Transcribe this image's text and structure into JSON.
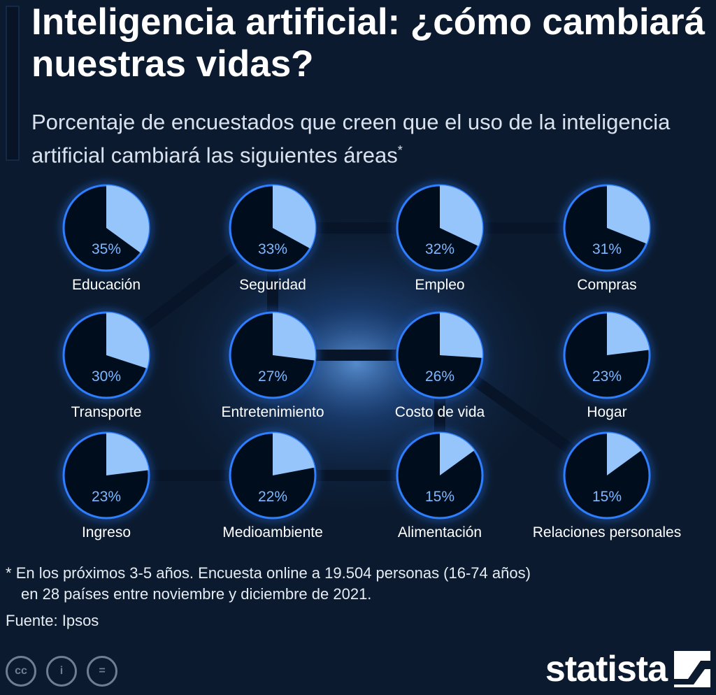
{
  "title": "Inteligencia artificial: ¿cómo cambiará nuestras vidas?",
  "subtitle": "Porcentaje de encuestados que creen que el uso de la inteligencia artificial cambiará las siguientes áreas",
  "subtitle_marker": "*",
  "footnote": {
    "marker": "*",
    "line1": "En los próximos 3-5 años. Encuesta online a 19.504 personas (16-74 años)",
    "line2": "en 28 países entre noviembre y diciembre de 2021."
  },
  "source": "Fuente: Ipsos",
  "brand": "statista",
  "icons": [
    "cc-icon",
    "by-icon",
    "nd-icon",
    "statista-logo-icon"
  ],
  "cc_labels": [
    "cc",
    "i",
    "="
  ],
  "colors": {
    "background": "#0b1a2e",
    "pie_fill": "#95c5fb",
    "pie_base": "#06101f",
    "pie_glow": "#2f7fff",
    "value_text": "#7fb8ff"
  },
  "chart_data": {
    "type": "pie",
    "unit": "%",
    "categories": [
      "Educación",
      "Seguridad",
      "Empleo",
      "Compras",
      "Transporte",
      "Entretenimiento",
      "Costo de vida",
      "Hogar",
      "Ingreso",
      "Medioambiente",
      "Alimentación",
      "Relaciones personales"
    ],
    "values": [
      35,
      33,
      32,
      31,
      30,
      27,
      26,
      23,
      23,
      22,
      15,
      15
    ],
    "value_labels": [
      "35%",
      "33%",
      "32%",
      "31%",
      "30%",
      "27%",
      "26%",
      "23%",
      "23%",
      "22%",
      "15%",
      "15%"
    ],
    "layout": "grid 4 columns x 3 rows"
  }
}
